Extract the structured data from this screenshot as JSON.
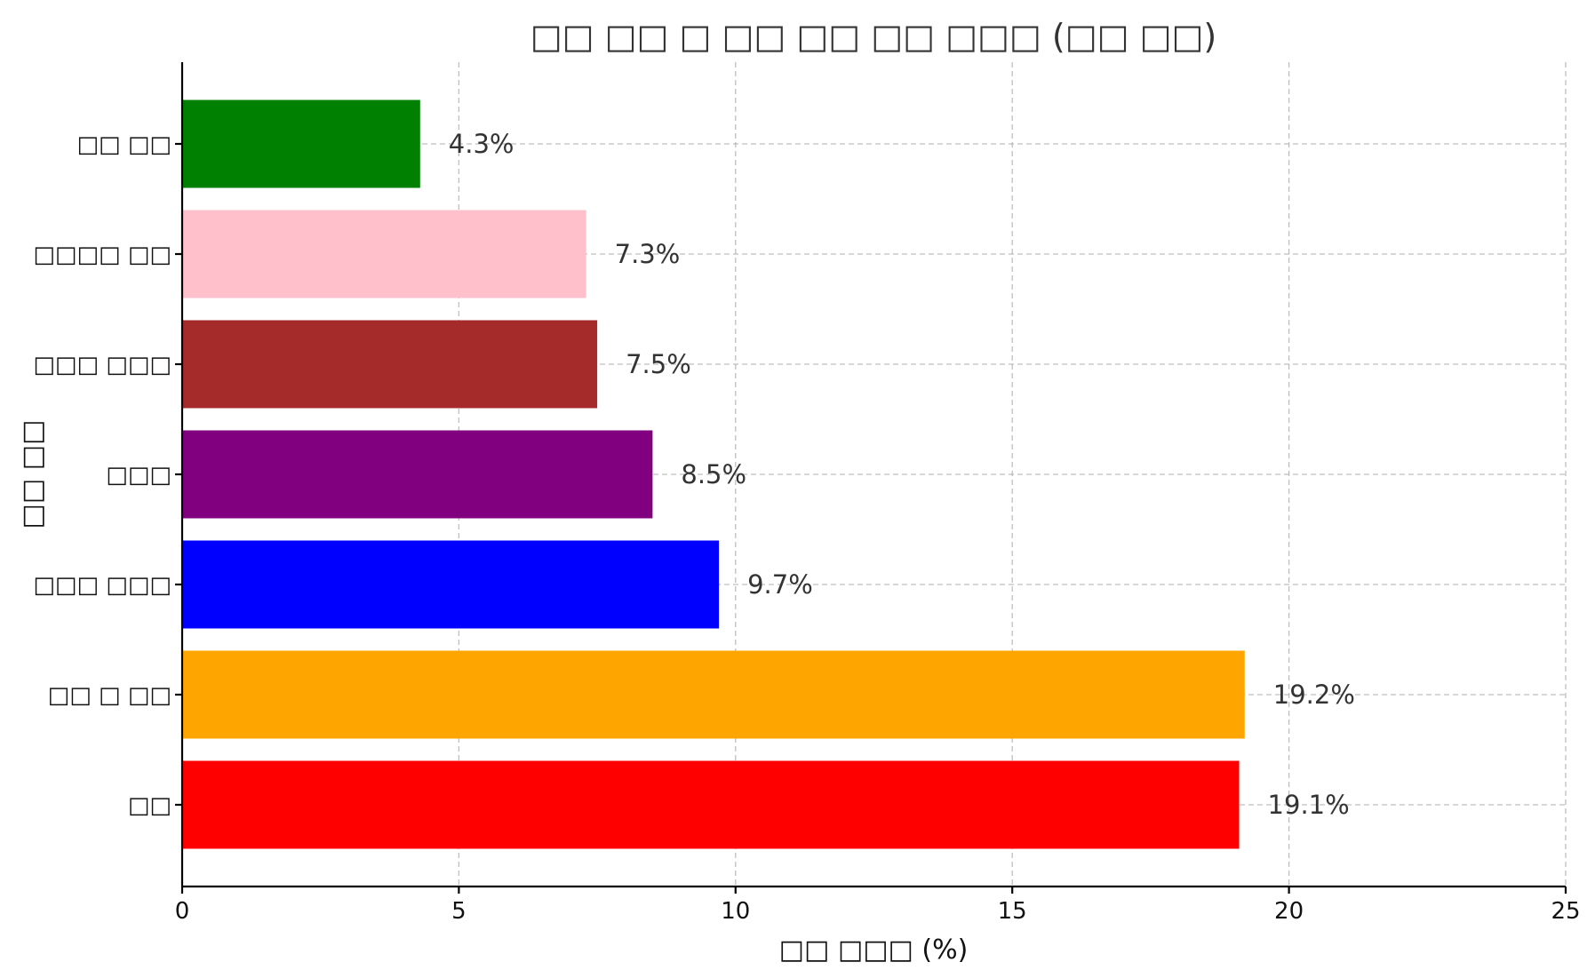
{
  "chart_data": {
    "type": "bar",
    "orientation": "horizontal",
    "title": "□□ □□ □ □□ □□ □□ □□□ (□□ □□)",
    "xlabel": "□□ □□□ (%)",
    "ylabel": "□□ □□",
    "categories": [
      "□□",
      "□□ □ □□",
      "□□□ □□□",
      "□□□",
      "□□□ □□□",
      "□□□□ □□",
      "□□ □□"
    ],
    "values": [
      19.1,
      19.2,
      9.7,
      8.5,
      7.5,
      7.3,
      4.3
    ],
    "data_labels": [
      "19.1%",
      "19.2%",
      "9.7%",
      "8.5%",
      "7.5%",
      "7.3%",
      "4.3%"
    ],
    "colors": [
      "#ff0000",
      "#ffa500",
      "#0000ff",
      "#800080",
      "#a52a2a",
      "#ffc0cb",
      "#008000"
    ],
    "xlim": [
      0,
      25
    ],
    "xticks": [
      0,
      5,
      10,
      15,
      20,
      25
    ],
    "grid": true
  }
}
